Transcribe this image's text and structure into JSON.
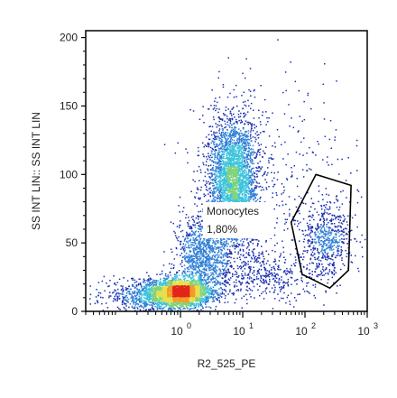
{
  "chart_data": {
    "type": "scatter",
    "plot_style": "flow cytometry density dot plot",
    "xlabel": "R2_525_PE",
    "ylabel": "SS INT LIN:: SS INT LIN",
    "x_scale": "log",
    "xlim": [
      0.03,
      1000
    ],
    "ylim": [
      0,
      205
    ],
    "x_ticks": [
      {
        "value": 1,
        "base": "10",
        "exp": "0"
      },
      {
        "value": 10,
        "base": "10",
        "exp": "1"
      },
      {
        "value": 100,
        "base": "10",
        "exp": "2"
      },
      {
        "value": 1000,
        "base": "10",
        "exp": "3"
      }
    ],
    "y_ticks": [
      0,
      50,
      100,
      150,
      200
    ],
    "grid": false,
    "density_colors": [
      "#1a2fb0",
      "#2f7fd6",
      "#3cc4dc",
      "#7fd27a",
      "#e6e04a",
      "#f59a2a",
      "#e2261a"
    ],
    "populations": [
      {
        "center_x": 1.0,
        "center_y": 14,
        "spread_logx": 0.22,
        "spread_y": 5,
        "weight": 0.26
      },
      {
        "center_x": 0.35,
        "center_y": 12,
        "spread_logx": 0.4,
        "spread_y": 6,
        "weight": 0.1
      },
      {
        "center_x": 2.2,
        "center_y": 40,
        "spread_logx": 0.2,
        "spread_y": 16,
        "weight": 0.12
      },
      {
        "center_x": 7.0,
        "center_y": 95,
        "spread_logx": 0.2,
        "spread_y": 24,
        "weight": 0.36
      },
      {
        "center_x": 220,
        "center_y": 52,
        "spread_logx": 0.2,
        "spread_y": 13,
        "weight": 0.06
      },
      {
        "center_x": 20,
        "center_y": 25,
        "spread_logx": 0.5,
        "spread_y": 9,
        "weight": 0.05
      },
      {
        "center_x": 30,
        "center_y": 90,
        "spread_logx": 0.7,
        "spread_y": 40,
        "weight": 0.05
      }
    ],
    "gate": {
      "name": "Monocytes",
      "percent": "1,80%",
      "vertices": [
        [
          60,
          65
        ],
        [
          150,
          100
        ],
        [
          550,
          92
        ],
        [
          500,
          30
        ],
        [
          250,
          17
        ],
        [
          90,
          27
        ]
      ]
    }
  }
}
